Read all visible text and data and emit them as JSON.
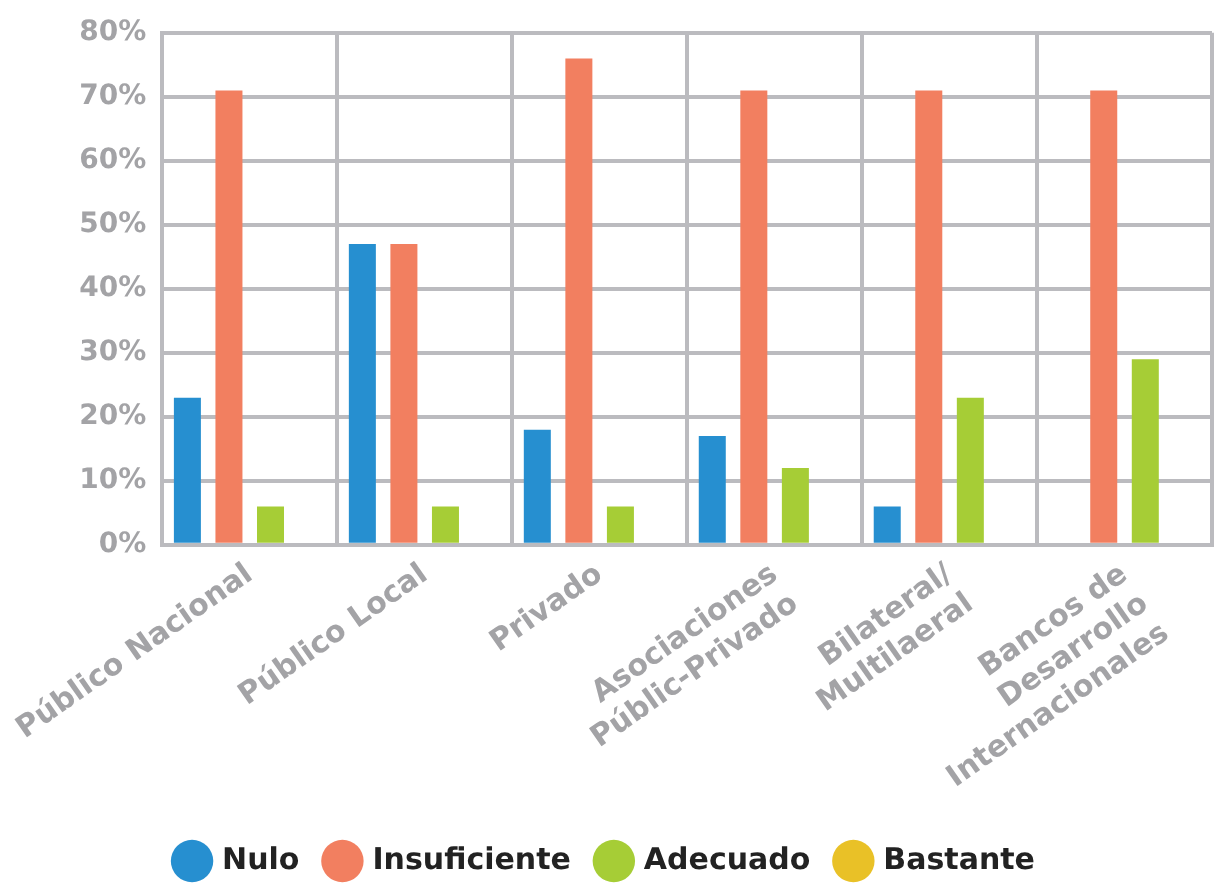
{
  "chart_data": {
    "type": "bar",
    "categories": [
      "Público Nacional",
      "Público Local",
      "Privado",
      "Asociaciones\nPúblic-Privado",
      "Bilateral/\nMultilaeral",
      "Bancos de\nDesarrollo\nInternacionales"
    ],
    "series": [
      {
        "name": "Nulo",
        "color": "#268fd0",
        "values": [
          23,
          47,
          18,
          17,
          6,
          0
        ]
      },
      {
        "name": "Insuficiente",
        "color": "#f27f60",
        "values": [
          71,
          47,
          76,
          71,
          71,
          71
        ]
      },
      {
        "name": "Adecuado",
        "color": "#a6cd36",
        "values": [
          6,
          6,
          6,
          12,
          23,
          29
        ]
      },
      {
        "name": "Bastante",
        "color": "#e9c127",
        "values": [
          0,
          0,
          0,
          0,
          0,
          0
        ]
      }
    ],
    "ylim": [
      0,
      80
    ],
    "yticks": [
      {
        "value": 0,
        "label": "0%"
      },
      {
        "value": 10,
        "label": "10%"
      },
      {
        "value": 20,
        "label": "20%"
      },
      {
        "value": 30,
        "label": "30%"
      },
      {
        "value": 40,
        "label": "40%"
      },
      {
        "value": 50,
        "label": "50%"
      },
      {
        "value": 60,
        "label": "60%"
      },
      {
        "value": 70,
        "label": "70%"
      },
      {
        "value": 80,
        "label": "80%"
      }
    ],
    "grid": true,
    "legend": "bottom"
  }
}
